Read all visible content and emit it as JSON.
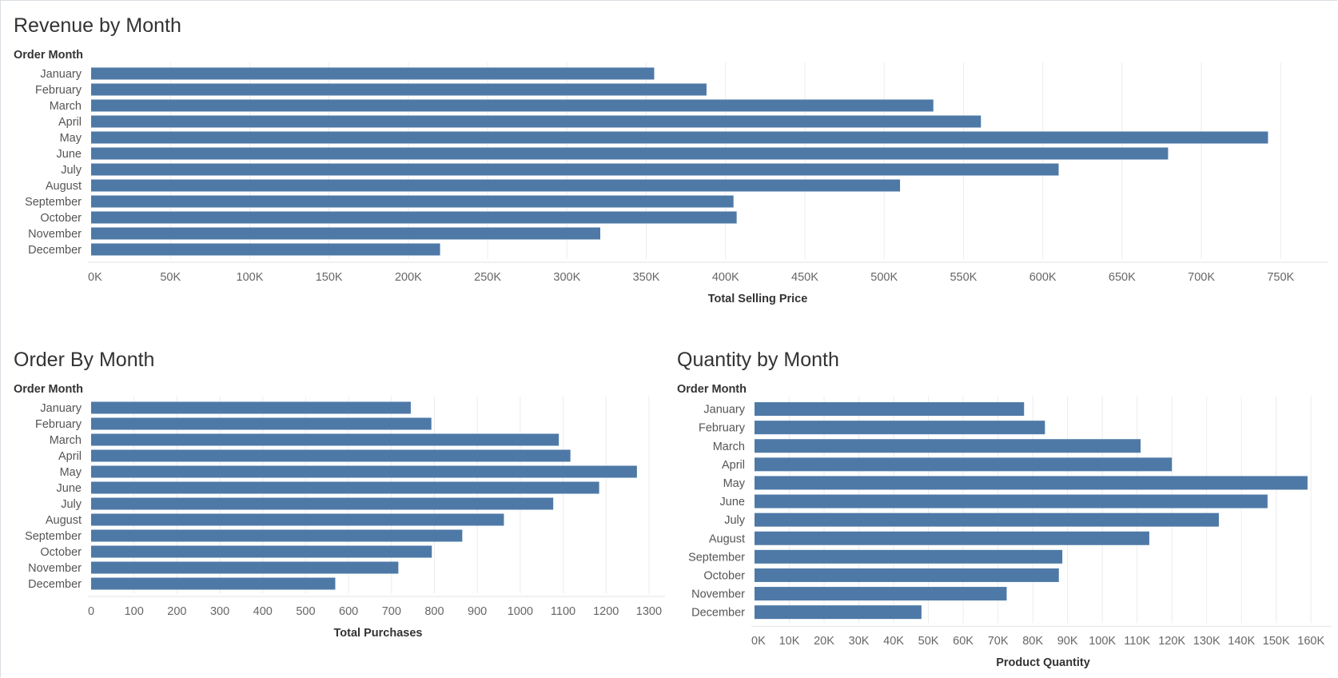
{
  "accent_color": "#4e79a7",
  "chart_data": [
    {
      "id": "revenue",
      "type": "bar",
      "orientation": "horizontal",
      "title": "Revenue by Month",
      "category_header": "Order Month",
      "xlabel": "Total Selling Price",
      "categories": [
        "January",
        "February",
        "March",
        "April",
        "May",
        "June",
        "July",
        "August",
        "September",
        "October",
        "November",
        "December"
      ],
      "values": [
        355000,
        388000,
        531000,
        561000,
        742000,
        679000,
        610000,
        510000,
        405000,
        407000,
        321000,
        220000
      ],
      "xlim": [
        0,
        770000
      ],
      "ticks": [
        0,
        50000,
        100000,
        150000,
        200000,
        250000,
        300000,
        350000,
        400000,
        450000,
        500000,
        550000,
        600000,
        650000,
        700000,
        750000
      ],
      "tick_labels": [
        "0K",
        "50K",
        "100K",
        "150K",
        "200K",
        "250K",
        "300K",
        "350K",
        "400K",
        "450K",
        "500K",
        "550K",
        "600K",
        "650K",
        "700K",
        "750K"
      ],
      "grid": true
    },
    {
      "id": "orders",
      "type": "bar",
      "orientation": "horizontal",
      "title": "Order By Month",
      "category_header": "Order Month",
      "xlabel": "Total Purchases",
      "categories": [
        "January",
        "February",
        "March",
        "April",
        "May",
        "June",
        "July",
        "August",
        "September",
        "October",
        "November",
        "December"
      ],
      "values": [
        745,
        793,
        1090,
        1117,
        1272,
        1184,
        1077,
        962,
        865,
        794,
        716,
        569
      ],
      "xlim": [
        0,
        1330
      ],
      "ticks": [
        0,
        100,
        200,
        300,
        400,
        500,
        600,
        700,
        800,
        900,
        1000,
        1100,
        1200,
        1300
      ],
      "tick_labels": [
        "0",
        "100",
        "200",
        "300",
        "400",
        "500",
        "600",
        "700",
        "800",
        "900",
        "1000",
        "1100",
        "1200",
        "1300"
      ],
      "grid": true
    },
    {
      "id": "quantity",
      "type": "bar",
      "orientation": "horizontal",
      "title": "Quantity by Month",
      "category_header": "Order Month",
      "xlabel": "Product Quantity",
      "categories": [
        "January",
        "February",
        "March",
        "April",
        "May",
        "June",
        "July",
        "August",
        "September",
        "October",
        "November",
        "December"
      ],
      "values": [
        77500,
        83500,
        111000,
        120000,
        159000,
        147500,
        133500,
        113500,
        88500,
        87500,
        72500,
        48000
      ],
      "xlim": [
        0,
        165000
      ],
      "ticks": [
        0,
        10000,
        20000,
        30000,
        40000,
        50000,
        60000,
        70000,
        80000,
        90000,
        100000,
        110000,
        120000,
        130000,
        140000,
        150000,
        160000
      ],
      "tick_labels": [
        "0K",
        "10K",
        "20K",
        "30K",
        "40K",
        "50K",
        "60K",
        "70K",
        "80K",
        "90K",
        "100K",
        "110K",
        "120K",
        "130K",
        "140K",
        "150K",
        "160K"
      ],
      "grid": true
    }
  ]
}
